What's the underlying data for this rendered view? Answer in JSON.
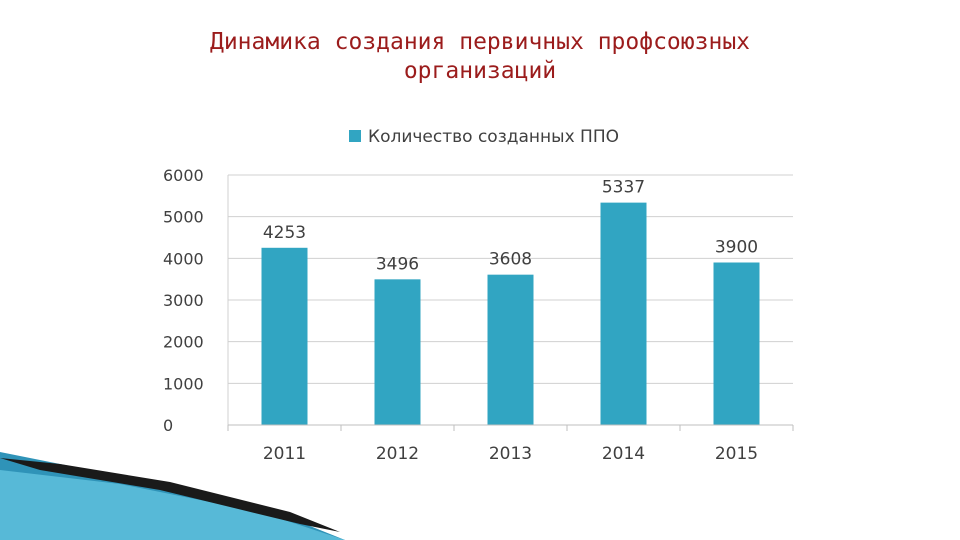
{
  "slide": {
    "title_line1": "Динамика создания первичных профсоюзных",
    "title_line2": "организаций"
  },
  "colors": {
    "title": "#9b1c1c",
    "bar": "#31a5c2",
    "grid": "#d0d0d0",
    "text": "#404040"
  },
  "chart_data": {
    "type": "bar",
    "title": "",
    "xlabel": "",
    "ylabel": "",
    "categories": [
      "2011",
      "2012",
      "2013",
      "2014",
      "2015"
    ],
    "series": [
      {
        "name": "Количество созданных ППО",
        "values": [
          4253,
          3496,
          3608,
          5337,
          3900
        ]
      }
    ],
    "yticks": [
      "0",
      "1000",
      "2000",
      "3000",
      "4000",
      "5000",
      "6000"
    ],
    "ylim": [
      0,
      6000
    ],
    "grid": true,
    "legend_position": "top",
    "data_labels": true
  }
}
